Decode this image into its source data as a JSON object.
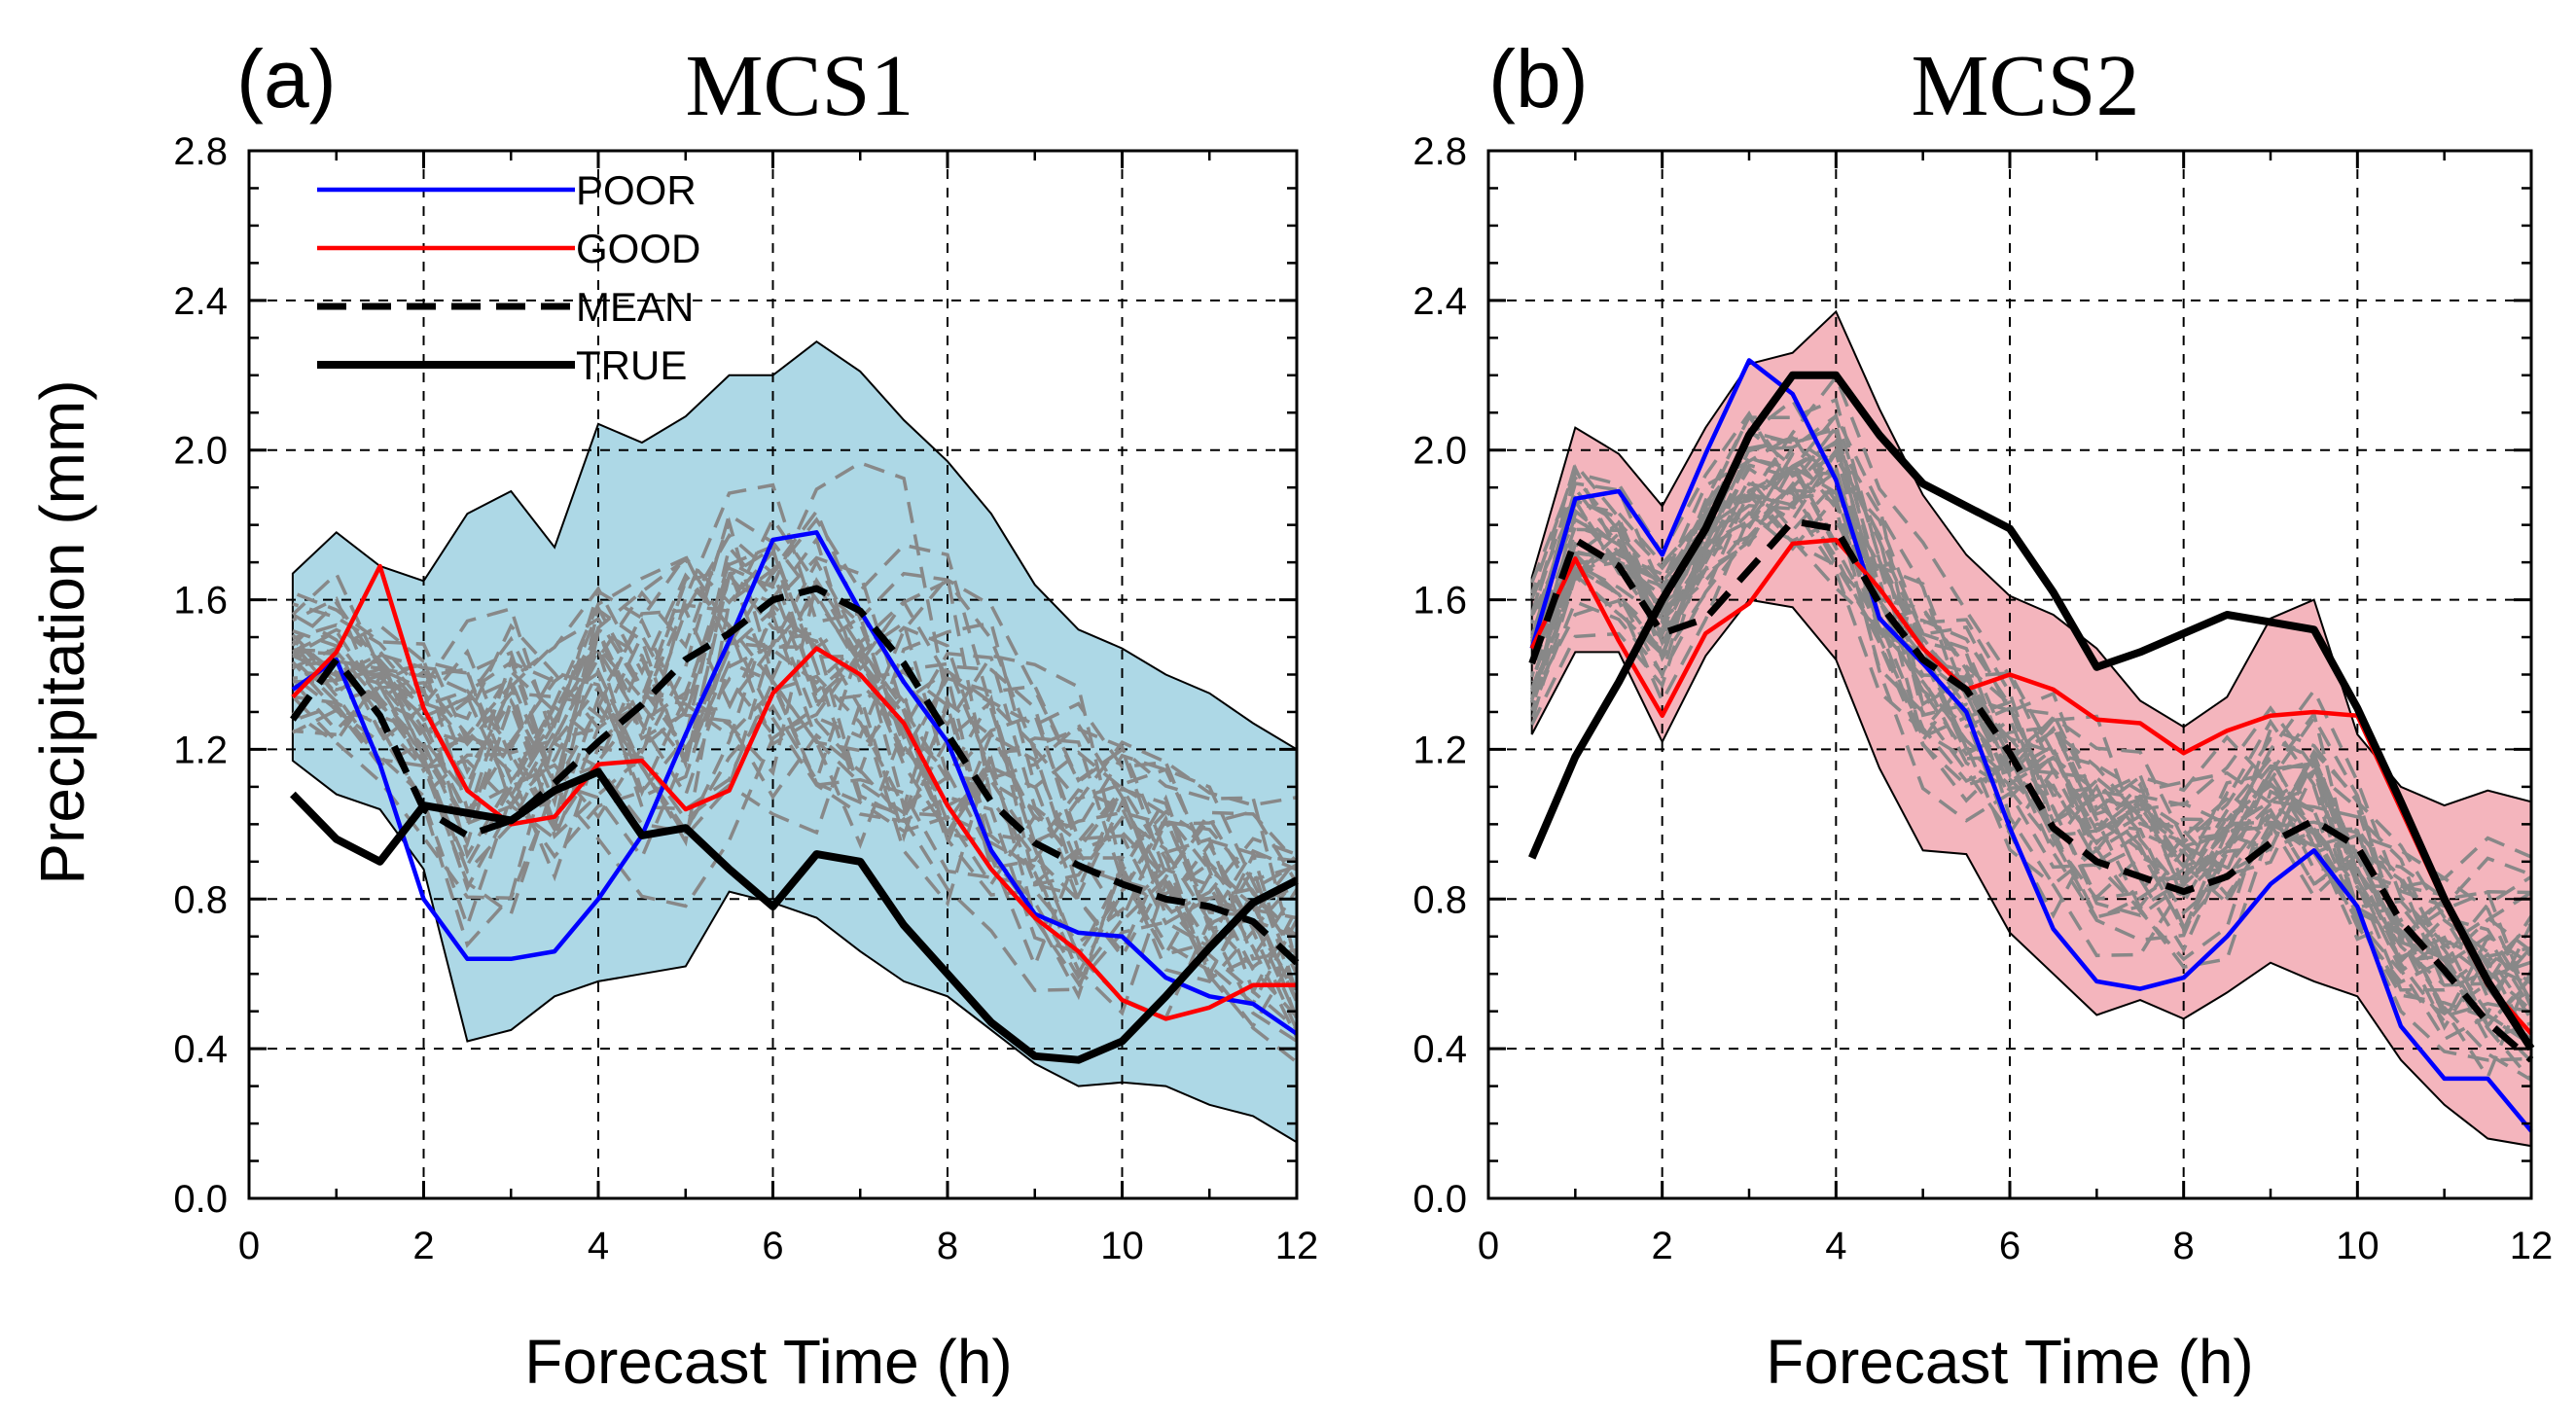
{
  "colors": {
    "poor": "#0000ff",
    "good": "#ff0000",
    "mean": "#000000",
    "true": "#000000",
    "member": "#888888",
    "fill_a": "#add8e6",
    "fill_b": "#f4b5bd"
  },
  "chart_data": [
    {
      "type": "line",
      "panel_label": "(a)",
      "title": "MCS1",
      "xlabel": "Forecast Time (h)",
      "ylabel": "Precipitation (mm)",
      "xlim": [
        0,
        12
      ],
      "ylim": [
        0,
        2.8
      ],
      "xticks": [
        0,
        2,
        4,
        6,
        8,
        10,
        12
      ],
      "xtick_labels": [
        "0",
        "2",
        "4",
        "6",
        "8",
        "10",
        "12"
      ],
      "yticks": [
        0,
        0.4,
        0.8,
        1.2,
        1.6,
        2.0,
        2.4,
        2.8
      ],
      "ytick_labels": [
        "0.0",
        "0.4",
        "0.8",
        "1.2",
        "1.6",
        "2.0",
        "2.4",
        "2.8"
      ],
      "grid": true,
      "legend_position": "top-left",
      "legend": [
        "POOR",
        "GOOD",
        "MEAN",
        "TRUE"
      ],
      "fill": "fill_a",
      "x": [
        0.5,
        1,
        1.5,
        2,
        2.5,
        3,
        3.5,
        4,
        4.5,
        5,
        5.5,
        6,
        6.5,
        7,
        7.5,
        8,
        8.5,
        9,
        9.5,
        10,
        10.5,
        11,
        11.5,
        12
      ],
      "envelope_upper": [
        1.67,
        1.78,
        1.69,
        1.65,
        1.83,
        1.89,
        1.74,
        2.07,
        2.02,
        2.09,
        2.2,
        2.2,
        2.29,
        2.21,
        2.08,
        1.97,
        1.83,
        1.64,
        1.52,
        1.47,
        1.4,
        1.35,
        1.27,
        1.2
      ],
      "envelope_lower": [
        1.17,
        1.08,
        1.04,
        0.88,
        0.42,
        0.45,
        0.54,
        0.58,
        0.6,
        0.62,
        0.82,
        0.79,
        0.75,
        0.66,
        0.58,
        0.54,
        0.45,
        0.36,
        0.3,
        0.31,
        0.3,
        0.25,
        0.22,
        0.15
      ],
      "series": [
        {
          "name": "POOR",
          "style": "solid",
          "values": [
            1.36,
            1.44,
            1.16,
            0.8,
            0.64,
            0.64,
            0.66,
            0.8,
            0.97,
            1.24,
            1.49,
            1.76,
            1.78,
            1.57,
            1.38,
            1.22,
            0.93,
            0.76,
            0.71,
            0.7,
            0.59,
            0.54,
            0.52,
            0.44
          ]
        },
        {
          "name": "GOOD",
          "style": "solid",
          "values": [
            1.34,
            1.46,
            1.69,
            1.31,
            1.09,
            1.0,
            1.02,
            1.16,
            1.17,
            1.04,
            1.09,
            1.35,
            1.47,
            1.4,
            1.27,
            1.05,
            0.88,
            0.75,
            0.66,
            0.53,
            0.48,
            0.51,
            0.57,
            0.57
          ]
        },
        {
          "name": "MEAN",
          "style": "dashed",
          "values": [
            1.28,
            1.44,
            1.29,
            1.04,
            0.97,
            1.01,
            1.11,
            1.22,
            1.32,
            1.44,
            1.51,
            1.6,
            1.63,
            1.57,
            1.43,
            1.24,
            1.06,
            0.95,
            0.89,
            0.84,
            0.8,
            0.78,
            0.74,
            0.63
          ]
        },
        {
          "name": "TRUE",
          "style": "solid",
          "values": [
            1.08,
            0.96,
            0.9,
            1.05,
            1.03,
            1.01,
            1.09,
            1.14,
            0.97,
            0.99,
            0.88,
            0.78,
            0.92,
            0.9,
            0.73,
            0.6,
            0.47,
            0.38,
            0.37,
            0.42,
            0.54,
            0.67,
            0.79,
            0.85
          ]
        }
      ]
    },
    {
      "type": "line",
      "panel_label": "(b)",
      "title": "MCS2",
      "xlabel": "Forecast Time (h)",
      "ylabel": "",
      "xlim": [
        0,
        12
      ],
      "ylim": [
        0,
        2.8
      ],
      "xticks": [
        0,
        2,
        4,
        6,
        8,
        10,
        12
      ],
      "xtick_labels": [
        "0",
        "2",
        "4",
        "6",
        "8",
        "10",
        "12"
      ],
      "yticks": [
        0,
        0.4,
        0.8,
        1.2,
        1.6,
        2.0,
        2.4,
        2.8
      ],
      "ytick_labels": [
        "0.0",
        "0.4",
        "0.8",
        "1.2",
        "1.6",
        "2.0",
        "2.4",
        "2.8"
      ],
      "grid": true,
      "legend_position": "none",
      "legend": [],
      "fill": "fill_b",
      "x": [
        0.5,
        1,
        1.5,
        2,
        2.5,
        3,
        3.5,
        4,
        4.5,
        5,
        5.5,
        6,
        6.5,
        7,
        7.5,
        8,
        8.5,
        9,
        9.5,
        10,
        10.5,
        11,
        11.5,
        12
      ],
      "envelope_upper": [
        1.66,
        2.06,
        1.99,
        1.85,
        2.06,
        2.23,
        2.26,
        2.37,
        2.11,
        1.88,
        1.72,
        1.61,
        1.56,
        1.47,
        1.33,
        1.26,
        1.34,
        1.55,
        1.6,
        1.24,
        1.1,
        1.05,
        1.09,
        1.06
      ],
      "envelope_lower": [
        1.24,
        1.46,
        1.46,
        1.22,
        1.45,
        1.6,
        1.58,
        1.44,
        1.15,
        0.93,
        0.92,
        0.71,
        0.6,
        0.49,
        0.53,
        0.48,
        0.55,
        0.63,
        0.58,
        0.54,
        0.37,
        0.25,
        0.16,
        0.14
      ],
      "series": [
        {
          "name": "POOR",
          "style": "solid",
          "values": [
            1.47,
            1.87,
            1.89,
            1.72,
            1.99,
            2.24,
            2.15,
            1.92,
            1.55,
            1.43,
            1.3,
            0.99,
            0.72,
            0.58,
            0.56,
            0.59,
            0.7,
            0.84,
            0.93,
            0.78,
            0.46,
            0.32,
            0.32,
            0.18
          ]
        },
        {
          "name": "GOOD",
          "style": "solid",
          "values": [
            1.47,
            1.71,
            1.49,
            1.29,
            1.51,
            1.59,
            1.75,
            1.76,
            1.63,
            1.47,
            1.36,
            1.4,
            1.36,
            1.28,
            1.27,
            1.19,
            1.25,
            1.29,
            1.3,
            1.29,
            1.04,
            0.79,
            0.57,
            0.44
          ]
        },
        {
          "name": "MEAN",
          "style": "dashed",
          "values": [
            1.43,
            1.76,
            1.69,
            1.51,
            1.55,
            1.68,
            1.81,
            1.79,
            1.59,
            1.44,
            1.36,
            1.19,
            0.99,
            0.9,
            0.86,
            0.82,
            0.86,
            0.95,
            1.01,
            0.94,
            0.74,
            0.61,
            0.47,
            0.37
          ]
        },
        {
          "name": "TRUE",
          "style": "solid",
          "values": [
            0.91,
            1.18,
            1.38,
            1.6,
            1.79,
            2.04,
            2.2,
            2.2,
            2.04,
            1.91,
            1.85,
            1.79,
            1.62,
            1.42,
            1.46,
            1.51,
            1.56,
            1.54,
            1.52,
            1.31,
            1.06,
            0.8,
            0.58,
            0.4
          ]
        }
      ]
    }
  ]
}
